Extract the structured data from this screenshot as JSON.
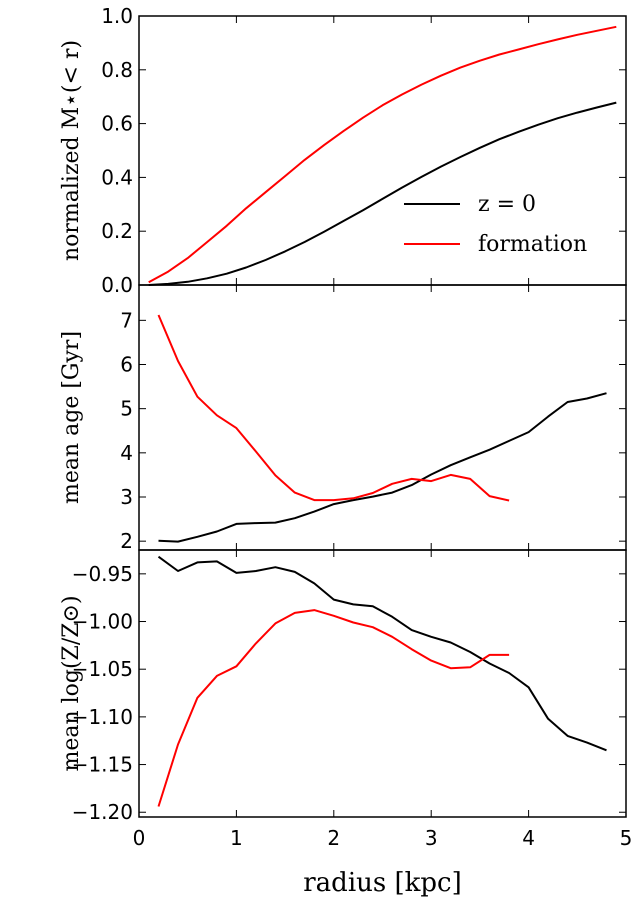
{
  "chart_data": [
    {
      "type": "line",
      "ylabel": "normalized M⋆(< r)",
      "ylim": [
        0,
        1.0
      ],
      "yticks": [
        "0.0",
        "0.2",
        "0.4",
        "0.6",
        "0.8",
        "1.0"
      ],
      "legend": {
        "placement": "right-lower",
        "entries": [
          "z = 0",
          "formation"
        ]
      },
      "series": [
        {
          "name": "z = 0",
          "color": "#000000",
          "x": [
            0.1,
            0.3,
            0.5,
            0.7,
            0.9,
            1.1,
            1.3,
            1.5,
            1.7,
            1.9,
            2.1,
            2.3,
            2.5,
            2.7,
            2.9,
            3.1,
            3.3,
            3.5,
            3.7,
            3.9,
            4.1,
            4.3,
            4.5,
            4.7,
            4.9
          ],
          "y": [
            0.0,
            0.004,
            0.012,
            0.025,
            0.042,
            0.065,
            0.093,
            0.125,
            0.16,
            0.198,
            0.238,
            0.278,
            0.32,
            0.362,
            0.402,
            0.44,
            0.476,
            0.51,
            0.542,
            0.57,
            0.596,
            0.62,
            0.641,
            0.66,
            0.678
          ]
        },
        {
          "name": "formation",
          "color": "#ff0000",
          "x": [
            0.1,
            0.3,
            0.5,
            0.7,
            0.9,
            1.1,
            1.3,
            1.5,
            1.7,
            1.9,
            2.1,
            2.3,
            2.5,
            2.7,
            2.9,
            3.1,
            3.3,
            3.5,
            3.7,
            3.9,
            4.1,
            4.3,
            4.5,
            4.7,
            4.9
          ],
          "y": [
            0.01,
            0.05,
            0.1,
            0.16,
            0.22,
            0.285,
            0.345,
            0.405,
            0.465,
            0.52,
            0.572,
            0.622,
            0.668,
            0.708,
            0.745,
            0.778,
            0.808,
            0.834,
            0.857,
            0.876,
            0.895,
            0.913,
            0.93,
            0.945,
            0.96
          ]
        }
      ]
    },
    {
      "type": "line",
      "ylabel": "mean age [Gyr]",
      "ylim": [
        1.8,
        7.8
      ],
      "yticks": [
        "2",
        "3",
        "4",
        "5",
        "6",
        "7"
      ],
      "series": [
        {
          "name": "z = 0",
          "color": "#000000",
          "x": [
            0.2,
            0.4,
            0.6,
            0.8,
            1.0,
            1.2,
            1.4,
            1.6,
            1.8,
            2.0,
            2.2,
            2.4,
            2.6,
            2.8,
            3.0,
            3.2,
            3.4,
            3.6,
            3.8,
            4.0,
            4.2,
            4.4,
            4.6,
            4.8
          ],
          "y": [
            2.01,
            1.99,
            2.1,
            2.22,
            2.39,
            2.41,
            2.42,
            2.52,
            2.67,
            2.84,
            2.93,
            3.01,
            3.1,
            3.27,
            3.51,
            3.72,
            3.9,
            4.07,
            4.27,
            4.47,
            4.82,
            5.15,
            5.23,
            5.35
          ]
        },
        {
          "name": "formation",
          "color": "#ff0000",
          "x": [
            0.2,
            0.4,
            0.6,
            0.8,
            1.0,
            1.2,
            1.4,
            1.6,
            1.8,
            2.0,
            2.2,
            2.4,
            2.6,
            2.8,
            3.0,
            3.2,
            3.4,
            3.6,
            3.8
          ],
          "y": [
            7.12,
            6.08,
            5.27,
            4.85,
            4.56,
            4.03,
            3.49,
            3.1,
            2.93,
            2.93,
            2.97,
            3.09,
            3.3,
            3.41,
            3.36,
            3.5,
            3.41,
            3.02,
            2.92
          ]
        }
      ]
    },
    {
      "type": "line",
      "xlabel": "radius [kpc]",
      "ylabel": "mean log(Z/Z⊙)",
      "ylim": [
        -1.205,
        -0.925
      ],
      "xlim": [
        0,
        5
      ],
      "yticks": [
        "−0.95",
        "−1.00",
        "−1.05",
        "−1.10",
        "−1.15",
        "−1.20"
      ],
      "xticks": [
        "0",
        "1",
        "2",
        "3",
        "4",
        "5"
      ],
      "series": [
        {
          "name": "z = 0",
          "color": "#000000",
          "x": [
            0.2,
            0.4,
            0.6,
            0.8,
            1.0,
            1.2,
            1.4,
            1.6,
            1.8,
            2.0,
            2.2,
            2.4,
            2.6,
            2.8,
            3.0,
            3.2,
            3.4,
            3.6,
            3.8,
            4.0,
            4.2,
            4.4,
            4.6,
            4.8
          ],
          "y": [
            -0.932,
            -0.947,
            -0.938,
            -0.937,
            -0.949,
            -0.947,
            -0.943,
            -0.948,
            -0.96,
            -0.977,
            -0.982,
            -0.984,
            -0.995,
            -1.009,
            -1.016,
            -1.022,
            -1.032,
            -1.044,
            -1.054,
            -1.069,
            -1.102,
            -1.12,
            -1.127,
            -1.135
          ]
        },
        {
          "name": "formation",
          "color": "#ff0000",
          "x": [
            0.2,
            0.4,
            0.6,
            0.8,
            1.0,
            1.2,
            1.4,
            1.6,
            1.8,
            2.0,
            2.2,
            2.4,
            2.6,
            2.8,
            3.0,
            3.2,
            3.4,
            3.6,
            3.8
          ],
          "y": [
            -1.194,
            -1.129,
            -1.08,
            -1.057,
            -1.047,
            -1.023,
            -1.002,
            -0.991,
            -0.988,
            -0.994,
            -1.001,
            -1.006,
            -1.016,
            -1.029,
            -1.041,
            -1.049,
            -1.048,
            -1.035,
            -1.035
          ]
        }
      ]
    }
  ]
}
